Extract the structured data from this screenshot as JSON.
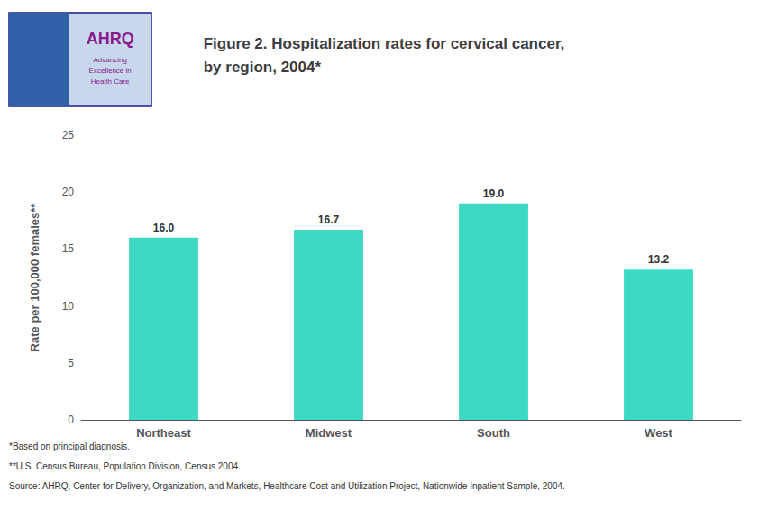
{
  "chart_data": {
    "type": "bar",
    "title": "Figure 2. Hospitalization rates for cervical cancer,\nby region, 2004*",
    "y_label": "Rate per 100,000 females**",
    "categories": [
      "Northeast",
      "Midwest",
      "South",
      "West"
    ],
    "values": [
      16.0,
      16.7,
      19.0,
      13.2
    ],
    "value_labels": [
      "16.0",
      "16.7",
      "19.0",
      "13.2"
    ],
    "data_labels": true,
    "color": "#3DD9C5",
    "ylim": [
      0,
      25
    ],
    "yticks": [
      0,
      5,
      10,
      15,
      20,
      25
    ],
    "grid": false,
    "annotations": [
      "AHRQ",
      "Advancing",
      "Excellence in",
      "Health Care",
      "*Based on principal diagnosis.",
      "**U.S. Census Bureau, Population Division, Census 2004.",
      "Source: AHRQ, Center for Delivery, Organization, and Markets, Healthcare Cost and Utilization Project, Nationwide Inpatient Sample, 2004."
    ]
  }
}
